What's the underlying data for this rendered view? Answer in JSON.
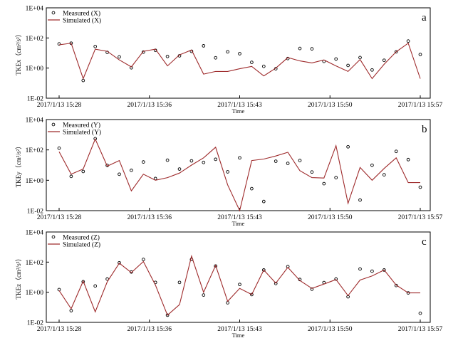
{
  "chart_data": [
    {
      "type": "line",
      "panel_letter": "a",
      "ylabel": "TKEx（cm²/s²）",
      "xlabel": "Time",
      "yscale": "log",
      "ylim": [
        0.01,
        10000
      ],
      "ytick_labels": [
        "1E-02",
        "1E+00",
        "1E+02",
        "1E+04"
      ],
      "ytick_values": [
        0.01,
        1,
        100,
        10000
      ],
      "xtick_labels": [
        "2017/1/13 15:28",
        "2017/1/13 15:36",
        "2017/1/13 15:43",
        "2017/1/13 15:50",
        "2017/1/13 15:57"
      ],
      "xtick_index": [
        0,
        7.5,
        15,
        22.5,
        30
      ],
      "x": [
        0,
        1,
        2,
        3,
        4,
        5,
        6,
        7,
        8,
        9,
        10,
        11,
        12,
        13,
        14,
        15,
        16,
        17,
        18,
        19,
        20,
        21,
        22,
        23,
        24,
        25,
        26,
        27,
        28,
        29,
        30
      ],
      "series": [
        {
          "name": "Measured (X)",
          "style": "markers",
          "values": [
            40,
            45,
            0.15,
            27,
            11,
            5.5,
            1.05,
            11.5,
            15,
            5.9,
            6.5,
            13,
            30,
            4.8,
            12,
            9,
            2.4,
            1.3,
            0.9,
            4.3,
            20,
            19,
            2.8,
            4,
            1.5,
            5,
            0.75,
            3.3,
            12,
            62,
            8
          ]
        },
        {
          "name": "Simulated (X)",
          "style": "line",
          "values": [
            35,
            45,
            0.2,
            18,
            13,
            3.5,
            1.2,
            13,
            18,
            1.4,
            7.5,
            16,
            0.4,
            0.6,
            0.6,
            0.9,
            1.3,
            0.3,
            1,
            5,
            3,
            2.2,
            3.5,
            1.4,
            0.6,
            3.7,
            0.2,
            1.8,
            12,
            45,
            0.2
          ]
        }
      ]
    },
    {
      "type": "line",
      "panel_letter": "b",
      "ylabel": "TKEy（cm²/s²）",
      "xlabel": "Time",
      "yscale": "log",
      "ylim": [
        0.01,
        10000
      ],
      "ytick_labels": [
        "1E-02",
        "1E+00",
        "1E+02",
        "1E+04"
      ],
      "ytick_values": [
        0.01,
        1,
        100,
        10000
      ],
      "xtick_labels": [
        "2017/1/13 15:28",
        "2017/1/13 15:36",
        "2017/1/13 15:43",
        "2017/1/13 15:50",
        "2017/1/13 15:57"
      ],
      "xtick_index": [
        0,
        7.5,
        15,
        22.5,
        30
      ],
      "x": [
        0,
        1,
        2,
        3,
        4,
        5,
        6,
        7,
        8,
        9,
        10,
        11,
        12,
        13,
        14,
        15,
        16,
        17,
        18,
        19,
        20,
        21,
        22,
        23,
        24,
        25,
        26,
        27,
        28,
        29,
        30
      ],
      "series": [
        {
          "name": "Measured (Y)",
          "style": "markers",
          "values": [
            130,
            1.8,
            3.8,
            550,
            9.5,
            2.5,
            4.5,
            16,
            1.3,
            21,
            5.5,
            19,
            15,
            24,
            3.6,
            30,
            0.28,
            0.04,
            18,
            13,
            20,
            3.5,
            0.6,
            1.5,
            160,
            0.05,
            9.8,
            2.3,
            80,
            23,
            0.35
          ]
        },
        {
          "name": "Simulated (Y)",
          "style": "line",
          "values": [
            75,
            2.5,
            5.5,
            520,
            8.5,
            20,
            0.2,
            2.5,
            1,
            1.5,
            3,
            10,
            30,
            150,
            0.5,
            0.01,
            20,
            25,
            40,
            70,
            4.3,
            1.5,
            1.4,
            190,
            0.03,
            7,
            1,
            6,
            30,
            0.7,
            0.7
          ]
        }
      ]
    },
    {
      "type": "line",
      "panel_letter": "c",
      "ylabel": "TKEz（cm²/s²）",
      "xlabel": "Time",
      "yscale": "log",
      "ylim": [
        0.01,
        10000
      ],
      "ytick_labels": [
        "1E-02",
        "1E+00",
        "1E+02",
        "1E+04"
      ],
      "ytick_values": [
        0.01,
        1,
        100,
        10000
      ],
      "xtick_labels": [
        "2017/1/13 15:28",
        "2017/1/13 15:36",
        "2017/1/13 15:43",
        "2017/1/13 15:50",
        "2017/1/13 15:57"
      ],
      "xtick_index": [
        0,
        7.5,
        15,
        22.5,
        30
      ],
      "x": [
        0,
        1,
        2,
        3,
        4,
        5,
        6,
        7,
        8,
        9,
        10,
        11,
        12,
        13,
        14,
        15,
        16,
        17,
        18,
        19,
        20,
        21,
        22,
        23,
        24,
        25,
        26,
        27,
        28,
        29,
        30
      ],
      "series": [
        {
          "name": "Measured (Z)",
          "style": "markers",
          "values": [
            1.5,
            0.06,
            5,
            2.6,
            7.5,
            90,
            22,
            150,
            4.5,
            0.03,
            4.5,
            150,
            0.65,
            55,
            0.2,
            3.3,
            0.7,
            30,
            3.8,
            50,
            7,
            1.6,
            4.4,
            7.5,
            0.5,
            35,
            25,
            30,
            2.8,
            0.9,
            0.04
          ]
        },
        {
          "name": "Simulated (Z)",
          "style": "line",
          "values": [
            1.3,
            0.08,
            5.5,
            0.05,
            5,
            85,
            20,
            110,
            3,
            0.03,
            0.15,
            250,
            1,
            60,
            0.25,
            1.8,
            0.7,
            30,
            4,
            45,
            6,
            1.8,
            3.5,
            7,
            0.6,
            6.5,
            12,
            30,
            3,
            0.9,
            0.9
          ]
        }
      ]
    }
  ]
}
